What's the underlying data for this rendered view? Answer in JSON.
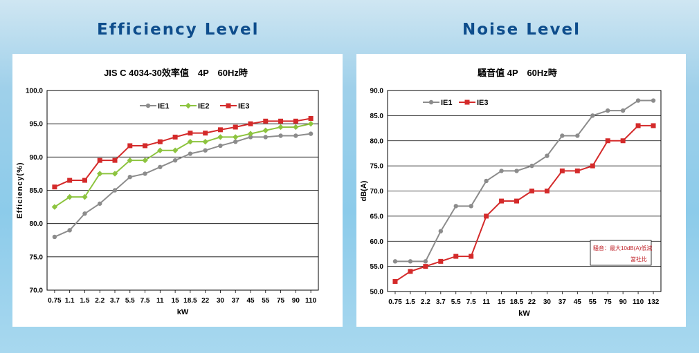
{
  "page": {
    "left_heading": "Efficiency Level",
    "right_heading": "Noise Level"
  },
  "chart_data": [
    {
      "type": "line",
      "title": "JIS C 4034-30效率值　4P　60Hz時",
      "xlabel": "kW",
      "ylabel": "Efficiency(%)",
      "ylim": [
        70.0,
        100.0
      ],
      "yticks": [
        "70.0",
        "75.0",
        "80.0",
        "85.0",
        "90.0",
        "95.0",
        "100.0"
      ],
      "grid": true,
      "legend_position": "top",
      "categories": [
        "0.75",
        "1.1",
        "1.5",
        "2.2",
        "3.7",
        "5.5",
        "7.5",
        "11",
        "15",
        "18.5",
        "22",
        "30",
        "37",
        "45",
        "55",
        "75",
        "90",
        "110"
      ],
      "series": [
        {
          "name": "IE1",
          "color": "#8c8c8c",
          "marker": "circle",
          "values": [
            78.0,
            79.0,
            81.5,
            83.0,
            85.0,
            87.0,
            87.5,
            88.5,
            89.5,
            90.5,
            91.0,
            91.7,
            92.3,
            93.0,
            93.0,
            93.2,
            93.2,
            93.5
          ]
        },
        {
          "name": "IE2",
          "color": "#8dc43f",
          "marker": "diamond",
          "values": [
            82.5,
            84.0,
            84.0,
            87.5,
            87.5,
            89.5,
            89.5,
            91.0,
            91.0,
            92.3,
            92.3,
            93.0,
            93.0,
            93.5,
            94.0,
            94.5,
            94.5,
            95.0
          ]
        },
        {
          "name": "IE3",
          "color": "#d42a2a",
          "marker": "square",
          "values": [
            85.5,
            86.5,
            86.5,
            89.5,
            89.5,
            91.7,
            91.7,
            92.3,
            93.0,
            93.6,
            93.6,
            94.1,
            94.5,
            95.0,
            95.4,
            95.4,
            95.4,
            95.8
          ]
        }
      ]
    },
    {
      "type": "line",
      "title": "騷音值 4P　60Hz時",
      "xlabel": "kW",
      "ylabel": "dB(A)",
      "ylim": [
        50.0,
        90.0
      ],
      "yticks": [
        "50.0",
        "55.0",
        "60.0",
        "65.0",
        "70.0",
        "75.0",
        "80.0",
        "85.0",
        "90.0"
      ],
      "grid": true,
      "legend_position": "top-left",
      "categories": [
        "0.75",
        "1.5",
        "2.2",
        "3.7",
        "5.5",
        "7.5",
        "11",
        "15",
        "18.5",
        "22",
        "30",
        "37",
        "45",
        "55",
        "75",
        "90",
        "110",
        "132"
      ],
      "series": [
        {
          "name": "IE1",
          "color": "#8c8c8c",
          "marker": "circle",
          "values": [
            56,
            56,
            56,
            62,
            67,
            67,
            72,
            74,
            74,
            75,
            77,
            81,
            81,
            85,
            86,
            86,
            88,
            88
          ]
        },
        {
          "name": "IE3",
          "color": "#d42a2a",
          "marker": "square",
          "values": [
            52,
            54,
            55,
            56,
            57,
            57,
            65,
            68,
            68,
            70,
            70,
            74,
            74,
            75,
            80,
            80,
            83,
            83
          ]
        }
      ],
      "annotation": {
        "line1": "騷音：最大10dB(A)低減",
        "line2": "當社比"
      }
    }
  ]
}
